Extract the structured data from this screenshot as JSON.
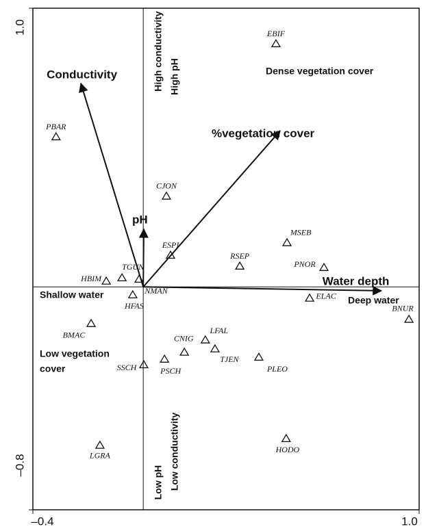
{
  "chart_data": {
    "type": "biplot",
    "xlim": [
      -0.4,
      1.0
    ],
    "ylim": [
      -0.8,
      1.0
    ],
    "xticks": [
      {
        "value": -0.4,
        "label": "–0.4"
      },
      {
        "value": 1.0,
        "label": "1.0"
      }
    ],
    "yticks": [
      {
        "value": -0.8,
        "label": "–0.8"
      },
      {
        "value": 1.0,
        "label": "1.0"
      }
    ],
    "points": {
      "labels": [
        "EBIF",
        "PBAR",
        "CJON",
        "MSEB",
        "ESPI",
        "RSEP",
        "PNOR",
        "TGUN",
        "HBIM",
        "NMAN",
        "HFAS",
        "ELAC",
        "BNUR",
        "BMAC",
        "LFAL",
        "CNIG",
        "TJEN",
        "PLEO",
        "SSCH",
        "PSCH",
        "LGRA",
        "HODO"
      ],
      "x": [
        0.481,
        -0.316,
        0.084,
        0.521,
        0.099,
        0.35,
        0.655,
        -0.077,
        -0.134,
        -0.015,
        -0.038,
        0.603,
        0.963,
        -0.189,
        0.225,
        0.149,
        0.26,
        0.419,
        0.002,
        0.077,
        -0.157,
        0.518
      ],
      "y": [
        0.872,
        0.538,
        0.325,
        0.158,
        0.113,
        0.074,
        0.069,
        0.032,
        0.02,
        0.027,
        -0.029,
        -0.041,
        -0.117,
        -0.132,
        -0.191,
        -0.235,
        -0.223,
        -0.253,
        -0.28,
        -0.26,
        -0.569,
        -0.545
      ]
    },
    "arrows": [
      {
        "name": "Conductivity",
        "x": -0.226,
        "y": 0.73
      },
      {
        "name": "%vegetation cover",
        "x": 0.496,
        "y": 0.56
      },
      {
        "name": "pH",
        "x": 0.002,
        "y": 0.207
      },
      {
        "name": "Water depth",
        "x": 0.863,
        "y": -0.014
      }
    ],
    "annotations": [
      "High conductivity",
      "High pH",
      "Dense vegetation cover",
      "Shallow water",
      "Deep water",
      "Low vegetation",
      "cover",
      "Low pH",
      "Low conductivity"
    ]
  }
}
